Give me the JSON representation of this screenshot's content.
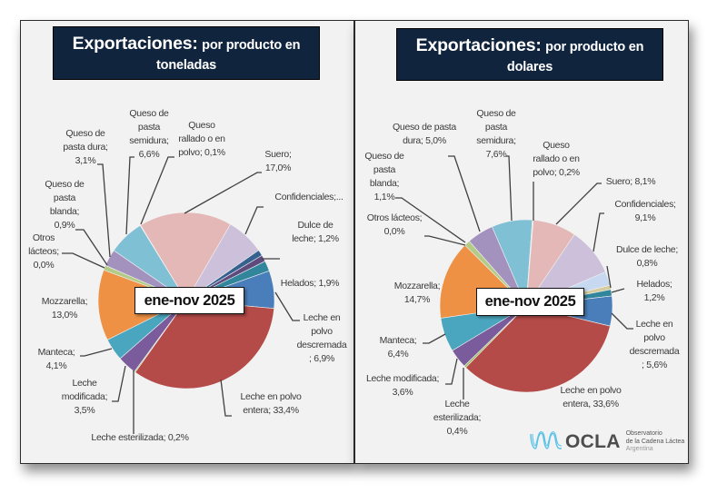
{
  "chart_data": [
    {
      "type": "pie",
      "title": "Exportaciones: por producto en toneladas",
      "title_parts": {
        "lead": "Exportaciones:",
        "rest_line1": "por producto en",
        "rest_line2": "toneladas"
      },
      "annotation": "ene-nov 2025",
      "unit": "%",
      "slices": [
        {
          "category": "Confidenciales",
          "value": 7.0,
          "label_lines": [
            "Confidenciales;..."
          ],
          "color": "#CCC0DA"
        },
        {
          "category": "",
          "value": 1.1,
          "label_lines": [],
          "color": "#35618F"
        },
        {
          "category": "Dulce de leche",
          "value": 1.2,
          "label_lines": [
            "Dulce de",
            "leche; 1,2%"
          ],
          "color": "#5F4A7E"
        },
        {
          "category": "Helados",
          "value": 1.9,
          "label_lines": [
            "Helados; 1,9%"
          ],
          "color": "#31869B"
        },
        {
          "category": "Leche en polvo descremada",
          "value": 6.9,
          "label_lines": [
            "Leche en",
            "polvo",
            "descremada",
            "; 6,9%"
          ],
          "color": "#4A7EBB"
        },
        {
          "category": "Leche en polvo entera",
          "value": 33.4,
          "label_lines": [
            "Leche en polvo",
            "entera; 33,4%"
          ],
          "color": "#B54B48"
        },
        {
          "category": "Leche esterilizada",
          "value": 0.2,
          "label_lines": [
            "Leche esterilizada; 0,2%"
          ],
          "color": "#9BBB59"
        },
        {
          "category": "Leche modificada",
          "value": 3.5,
          "label_lines": [
            "Leche",
            "modificada;",
            "3,5%"
          ],
          "color": "#7A5C9C"
        },
        {
          "category": "Manteca",
          "value": 4.1,
          "label_lines": [
            "Manteca;",
            "4,1%"
          ],
          "color": "#4AA6BF"
        },
        {
          "category": "Mozzarella",
          "value": 13.0,
          "label_lines": [
            "Mozzarella;",
            "13,0%"
          ],
          "color": "#EE9145"
        },
        {
          "category": "Otros lácteos",
          "value": 0.0,
          "label_lines": [
            "Otros",
            "lácteos;",
            "0,0%"
          ],
          "color": "#C3D69B"
        },
        {
          "category": "Queso de pasta blanda",
          "value": 0.9,
          "label_lines": [
            "Queso de",
            "pasta",
            "blanda;",
            "0,9%"
          ],
          "color": "#B3CB86"
        },
        {
          "category": "Queso de pasta dura",
          "value": 3.1,
          "label_lines": [
            "Queso de",
            "pasta dura;",
            "3,1%"
          ],
          "color": "#A392BE"
        },
        {
          "category": "Queso de pasta semidura",
          "value": 6.6,
          "label_lines": [
            "Queso de",
            "pasta",
            "semidura;",
            "6,6%"
          ],
          "color": "#7FC0D4"
        },
        {
          "category": "Queso rallado o en polvo",
          "value": 0.1,
          "label_lines": [
            "Queso",
            "rallado o en",
            "polvo; 0,1%"
          ],
          "color": "#F0D5D4"
        },
        {
          "category": "Suero",
          "value": 17.0,
          "label_lines": [
            "Suero;",
            "17,0%"
          ],
          "color": "#E4B8B7"
        }
      ]
    },
    {
      "type": "pie",
      "title": "Exportaciones: por producto en dolares",
      "title_parts": {
        "lead": "Exportaciones:",
        "rest_line1": "por producto en",
        "rest_line2": "dolares"
      },
      "annotation": "ene-nov 2025",
      "unit": "%",
      "slices": [
        {
          "category": "Confidenciales",
          "value": 9.1,
          "label_lines": [
            "Confidenciales;",
            "9,1%"
          ],
          "color": "#CCC0DA"
        },
        {
          "category": "",
          "value": 2.6,
          "label_lines": [],
          "color": "#C6D9F1"
        },
        {
          "category": "Dulce de leche",
          "value": 0.8,
          "label_lines": [
            "Dulce de leche;",
            "0,8%"
          ],
          "color": "#D4CC9E"
        },
        {
          "category": "Helados",
          "value": 1.2,
          "label_lines": [
            "Helados;",
            "1,2%"
          ],
          "color": "#31869B"
        },
        {
          "category": "Leche en polvo descremada",
          "value": 5.6,
          "label_lines": [
            "Leche en",
            "polvo",
            "descremada",
            "; 5,6%"
          ],
          "color": "#4A7EBB"
        },
        {
          "category": "Leche en polvo entera",
          "value": 33.6,
          "label_lines": [
            "Leche en polvo",
            "entera, 33,6%"
          ],
          "color": "#B54B48"
        },
        {
          "category": "Leche esterilizada",
          "value": 0.4,
          "label_lines": [
            "Leche",
            "esterilizada;",
            "0,4%"
          ],
          "color": "#9BBB59"
        },
        {
          "category": "Leche modificada",
          "value": 3.6,
          "label_lines": [
            "Leche modificada;",
            "3,6%"
          ],
          "color": "#7A5C9C"
        },
        {
          "category": "Manteca",
          "value": 6.4,
          "label_lines": [
            "Manteca;",
            "6,4%"
          ],
          "color": "#4AA6BF"
        },
        {
          "category": "Mozzarella",
          "value": 14.7,
          "label_lines": [
            "Mozzarella;",
            "14,7%"
          ],
          "color": "#EE9145"
        },
        {
          "category": "Otros lácteos",
          "value": 0.0,
          "label_lines": [
            "Otros lácteos;",
            "0,0%"
          ],
          "color": "#C3D69B"
        },
        {
          "category": "Queso de pasta blanda",
          "value": 1.1,
          "label_lines": [
            "Queso de",
            "pasta",
            "blanda;",
            "1,1%"
          ],
          "color": "#B3CB86"
        },
        {
          "category": "Queso de pasta dura",
          "value": 5.0,
          "label_lines": [
            "Queso de pasta",
            "dura; 5,0%"
          ],
          "color": "#A392BE"
        },
        {
          "category": "Queso de pasta semidura",
          "value": 7.6,
          "label_lines": [
            "Queso de",
            "pasta",
            "semidura;",
            "7,6%"
          ],
          "color": "#7FC0D4"
        },
        {
          "category": "Queso rallado o en polvo",
          "value": 0.2,
          "label_lines": [
            "Queso",
            "rallado o en",
            "polvo; 0,2%"
          ],
          "color": "#F0D5D4"
        },
        {
          "category": "Suero",
          "value": 8.1,
          "label_lines": [
            "Suero; 8,1%"
          ],
          "color": "#E4B8B7"
        }
      ]
    }
  ],
  "logo": {
    "icon": "milk-wave-icon",
    "wordmark": "OCLA",
    "line1": "Observatorio",
    "line2": "de la Cadena Láctea",
    "line3": "Argentina",
    "icon_color": "#5BC2E7"
  }
}
